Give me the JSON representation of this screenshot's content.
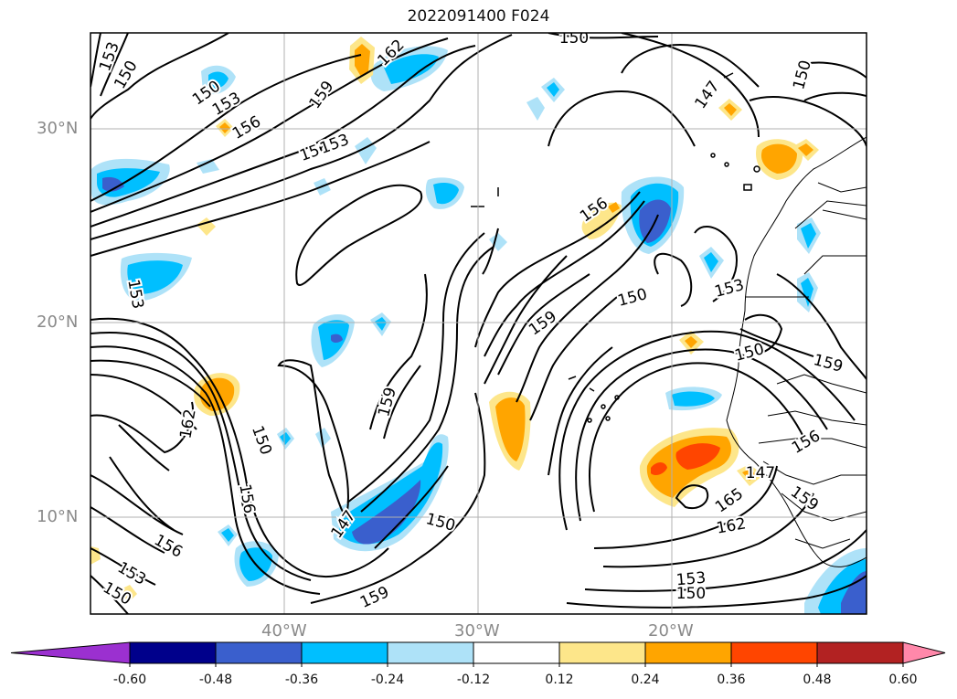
{
  "title": "2022091400 F024",
  "axes": {
    "lat_labels": [
      "30°N",
      "20°N",
      "10°N"
    ],
    "lon_labels": [
      "40°W",
      "30°W",
      "20°W"
    ]
  },
  "contour_labels": [
    "153",
    "150",
    "150",
    "153",
    "156",
    "159",
    "162",
    "156",
    "153",
    "150",
    "147",
    "150",
    "156",
    "159",
    "150",
    "153",
    "150",
    "159",
    "150",
    "153",
    "162",
    "147",
    "156",
    "150",
    "153",
    "159",
    "162",
    "150",
    "165",
    "156",
    "159",
    "147",
    "150",
    "153",
    "159",
    "156"
  ],
  "colorbar": {
    "ticks": [
      "-0.60",
      "-0.48",
      "-0.36",
      "-0.24",
      "-0.12",
      "0.12",
      "0.24",
      "0.36",
      "0.48",
      "0.60"
    ],
    "colors": [
      "#9b30d0",
      "#00008b",
      "#3a5fcd",
      "#00bfff",
      "#aee2f8",
      "#ffffff",
      "#fde68a",
      "#ffa500",
      "#ff4500",
      "#b22222",
      "#ff88aa"
    ]
  }
}
